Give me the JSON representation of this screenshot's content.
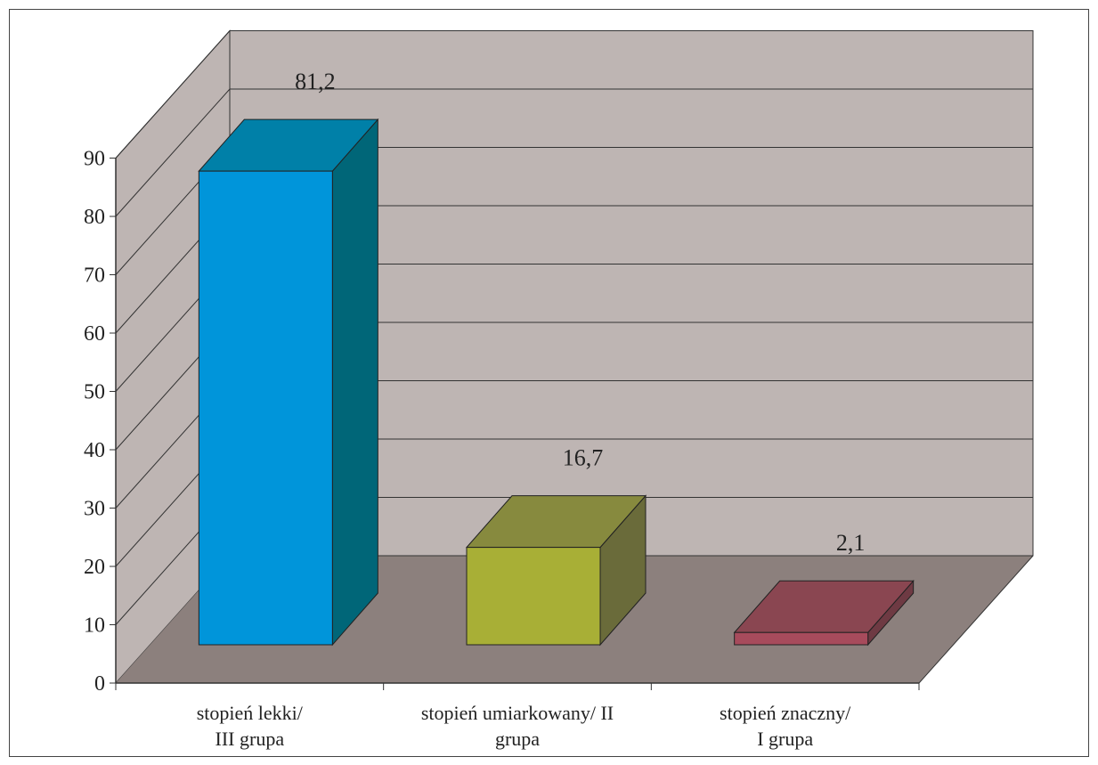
{
  "chart_data": {
    "type": "bar",
    "title": "",
    "xlabel": "",
    "ylabel": "",
    "ylim": [
      0,
      90
    ],
    "yticks": [
      0,
      10,
      20,
      30,
      40,
      50,
      60,
      70,
      80,
      90
    ],
    "grid": true,
    "legend": "none",
    "style": "3d-column",
    "categories": [
      [
        "stopień lekki/",
        "III grupa"
      ],
      [
        "stopień umiarkowany/ II",
        "grupa"
      ],
      [
        "stopień znaczny/",
        "I grupa"
      ]
    ],
    "series": [
      {
        "values": [
          81.2,
          16.7,
          2.1
        ],
        "data_labels": [
          "81,2",
          "16,7",
          "2,1"
        ],
        "colors": [
          {
            "front": "#0095DA",
            "top": "#0080A8",
            "side": "#006678"
          },
          {
            "front": "#A8AF36",
            "top": "#878A3E",
            "side": "#6A6B3A"
          },
          {
            "front": "#A74B5C",
            "top": "#8A4651",
            "side": "#6E3A43"
          }
        ]
      }
    ],
    "colors": {
      "wall": "#BEB5B3",
      "floor": "#8C807D",
      "gridline": "#333333",
      "axis": "#333333"
    }
  }
}
